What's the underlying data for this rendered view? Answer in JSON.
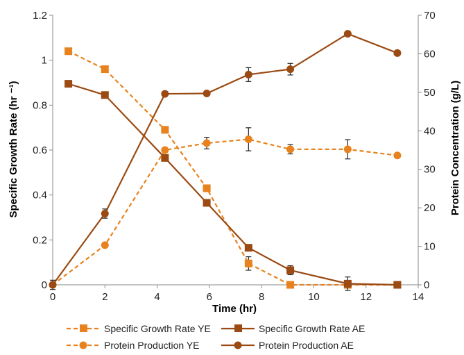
{
  "chart_data": {
    "type": "line",
    "xlabel": "Time (hr)",
    "ylabel": "Specific Growth Rate (hr ⁻¹)",
    "y2label": "Protein Concentration (g/L)",
    "xlim": [
      0,
      14
    ],
    "ylim": [
      0,
      1.2
    ],
    "y2lim": [
      0,
      70
    ],
    "xticks": [
      "0",
      "2",
      "4",
      "6",
      "8",
      "10",
      "12",
      "14"
    ],
    "yticks": [
      "0",
      "0.2",
      "0.4",
      "0.6",
      "0.8",
      "1",
      "1.2"
    ],
    "y2ticks": [
      "0",
      "10",
      "20",
      "30",
      "40",
      "50",
      "60",
      "70"
    ],
    "grid": false,
    "legend_position": "bottom",
    "series": [
      {
        "name": "Specific Growth Rate YE",
        "axis": "left",
        "color": "#E8821E",
        "line": "dashed",
        "marker": "square",
        "x": [
          0.6,
          2.0,
          4.3,
          5.9,
          7.5,
          9.1,
          11.3,
          13.2
        ],
        "y": [
          1.04,
          0.96,
          0.69,
          0.43,
          0.095,
          0.0,
          0.0,
          0.0
        ],
        "err": [
          0,
          0,
          0,
          0,
          0.03,
          0,
          0,
          0
        ]
      },
      {
        "name": "Specific Growth Rate AE",
        "axis": "left",
        "color": "#9A4A12",
        "line": "solid",
        "marker": "square",
        "x": [
          0.6,
          2.0,
          4.3,
          5.9,
          7.5,
          9.1,
          11.3,
          13.2
        ],
        "y": [
          0.895,
          0.845,
          0.565,
          0.365,
          0.165,
          0.065,
          0.005,
          0.0
        ],
        "err": [
          0,
          0,
          0,
          0,
          0.01,
          0.02,
          0.03,
          0
        ]
      },
      {
        "name": "Protein Production YE",
        "axis": "right",
        "color": "#E8821E",
        "line": "dashed",
        "marker": "circle",
        "x": [
          0.0,
          2.0,
          4.3,
          5.9,
          7.5,
          9.1,
          11.3,
          13.2
        ],
        "y": [
          0.0,
          10.3,
          35.0,
          36.8,
          37.8,
          35.2,
          35.2,
          33.6
        ],
        "err": [
          0,
          0,
          0,
          1.5,
          3.0,
          1.2,
          2.5,
          0
        ]
      },
      {
        "name": "Protein Production AE",
        "axis": "right",
        "color": "#9A4A12",
        "line": "solid",
        "marker": "circle",
        "x": [
          0.0,
          2.0,
          4.3,
          5.9,
          7.5,
          9.1,
          11.3,
          13.2
        ],
        "y": [
          0.0,
          18.5,
          49.6,
          49.7,
          54.6,
          56.0,
          65.2,
          60.2
        ],
        "err": [
          1.2,
          1.2,
          0,
          0,
          1.8,
          1.5,
          0,
          0
        ]
      }
    ]
  }
}
